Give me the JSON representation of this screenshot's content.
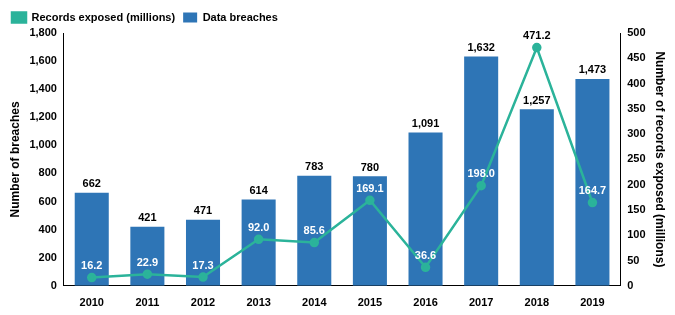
{
  "chart_data": {
    "type": "bar",
    "categories": [
      "2010",
      "2011",
      "2012",
      "2013",
      "2014",
      "2015",
      "2016",
      "2017",
      "2018",
      "2019"
    ],
    "series": [
      {
        "name": "Data breaches",
        "type": "bar",
        "color": "#2e75b6",
        "values": [
          662,
          421,
          471,
          614,
          783,
          780,
          1091,
          1632,
          1257,
          1473
        ],
        "value_labels": [
          "662",
          "421",
          "471",
          "614",
          "783",
          "780",
          "1,091",
          "1,632",
          "1,257",
          "1,473"
        ]
      },
      {
        "name": "Records exposed (millions)",
        "type": "line",
        "axis": "y2",
        "color": "#2bb39a",
        "marker": "circle",
        "line_style": "solid",
        "values": [
          16.2,
          22.9,
          17.3,
          92.0,
          85.6,
          169.1,
          36.6,
          198.0,
          471.2,
          164.7
        ],
        "value_labels": [
          "16.2",
          "22.9",
          "17.3",
          "92.0",
          "85.6",
          "169.1",
          "36.6",
          "198.0",
          "471.2",
          "164.7"
        ]
      }
    ],
    "y_label": "Number of breaches",
    "y2_label": "Number of records exposed (millions)",
    "ylim": [
      0,
      1800
    ],
    "yticks": [
      0,
      200,
      400,
      600,
      800,
      {
        "value": 1000,
        "label": "1,000"
      },
      {
        "value": 1200,
        "label": "1,200"
      },
      {
        "value": 1400,
        "label": "1,400"
      },
      {
        "value": 1600,
        "label": "1,600"
      },
      {
        "value": 1800,
        "label": "1,800"
      }
    ],
    "y2lim": [
      0,
      500
    ],
    "y2ticks": [
      0,
      50,
      100,
      150,
      200,
      250,
      300,
      350,
      400,
      450,
      500
    ],
    "grid": false,
    "legend": "upper left",
    "data_labels": true
  }
}
